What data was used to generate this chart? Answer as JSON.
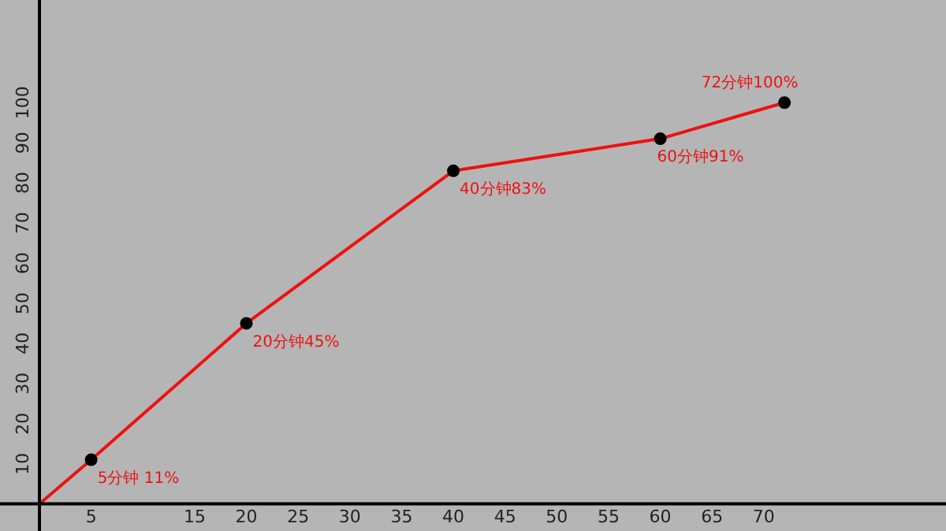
{
  "chart_data": {
    "type": "line",
    "x": [
      0,
      5,
      20,
      40,
      60,
      72
    ],
    "series": [
      {
        "color": "#ee1111",
        "values": [
          0,
          11,
          45,
          83,
          91,
          100
        ]
      }
    ],
    "marker": "circle",
    "line_style": "solid",
    "grid": false,
    "legend": false,
    "xlim": [
      0,
      87
    ],
    "xticks": [
      5,
      15,
      20,
      25,
      30,
      35,
      40,
      45,
      50,
      55,
      60,
      65,
      70
    ],
    "ylim": [
      0,
      124
    ],
    "yticks": [
      10,
      20,
      30,
      40,
      50,
      60,
      70,
      80,
      90,
      100
    ],
    "annotations": [
      {
        "text": "5分钟 11%",
        "x": 5,
        "y": 11
      },
      {
        "text": "20分钟45%",
        "x": 20,
        "y": 45
      },
      {
        "text": "40分钟83%",
        "x": 40,
        "y": 83
      },
      {
        "text": "60分钟91%",
        "x": 60,
        "y": 91
      },
      {
        "text": "72分钟100%",
        "x": 72,
        "y": 100
      }
    ]
  }
}
